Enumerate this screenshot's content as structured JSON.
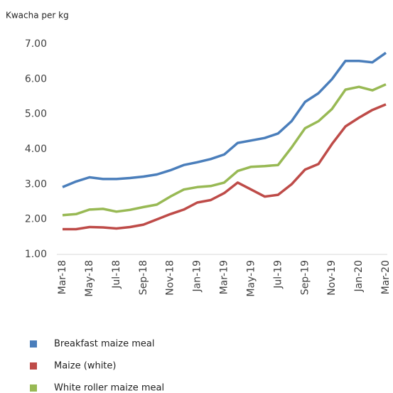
{
  "chart_data": {
    "type": "line",
    "title": "Kwacha per kg",
    "categories": [
      "Mar-18",
      null,
      "May-18",
      null,
      "Jul-18",
      null,
      "Sep-18",
      null,
      "Nov-18",
      null,
      "Jan-19",
      null,
      "Mar-19",
      null,
      "May-19",
      null,
      "Jul-19",
      null,
      "Sep-19",
      null,
      "Nov-19",
      null,
      "Jan-20",
      null,
      "Mar-20"
    ],
    "series": [
      {
        "name": "Breakfast maize meal",
        "color": "#4a7ebb",
        "values": [
          2.92,
          3.08,
          3.2,
          3.15,
          3.15,
          3.18,
          3.22,
          3.28,
          3.4,
          3.55,
          3.63,
          3.72,
          3.85,
          4.18,
          4.25,
          4.32,
          4.45,
          4.8,
          5.35,
          5.6,
          6.0,
          6.52,
          6.52,
          6.48,
          6.75
        ]
      },
      {
        "name": "Maize (white)",
        "color": "#be4b48",
        "values": [
          1.72,
          1.72,
          1.78,
          1.77,
          1.74,
          1.78,
          1.85,
          2.0,
          2.15,
          2.28,
          2.48,
          2.55,
          2.75,
          3.05,
          2.85,
          2.65,
          2.7,
          3.0,
          3.42,
          3.58,
          4.15,
          4.65,
          4.9,
          5.12,
          5.28
        ]
      },
      {
        "name": "White roller maize meal",
        "color": "#98b954",
        "values": [
          2.12,
          2.15,
          2.28,
          2.3,
          2.22,
          2.27,
          2.35,
          2.42,
          2.65,
          2.85,
          2.92,
          2.95,
          3.05,
          3.38,
          3.5,
          3.52,
          3.55,
          4.05,
          4.6,
          4.8,
          5.15,
          5.7,
          5.78,
          5.68,
          5.85
        ]
      }
    ],
    "ylim": [
      1,
      7
    ],
    "yticks": [
      {
        "value": 1,
        "label": "1.00"
      },
      {
        "value": 2,
        "label": "2.00"
      },
      {
        "value": 3,
        "label": "3.00"
      },
      {
        "value": 4,
        "label": "4.00"
      },
      {
        "value": 5,
        "label": "5.00"
      },
      {
        "value": 6,
        "label": "6.00"
      },
      {
        "value": 7,
        "label": "7.00"
      }
    ],
    "grid": false
  }
}
